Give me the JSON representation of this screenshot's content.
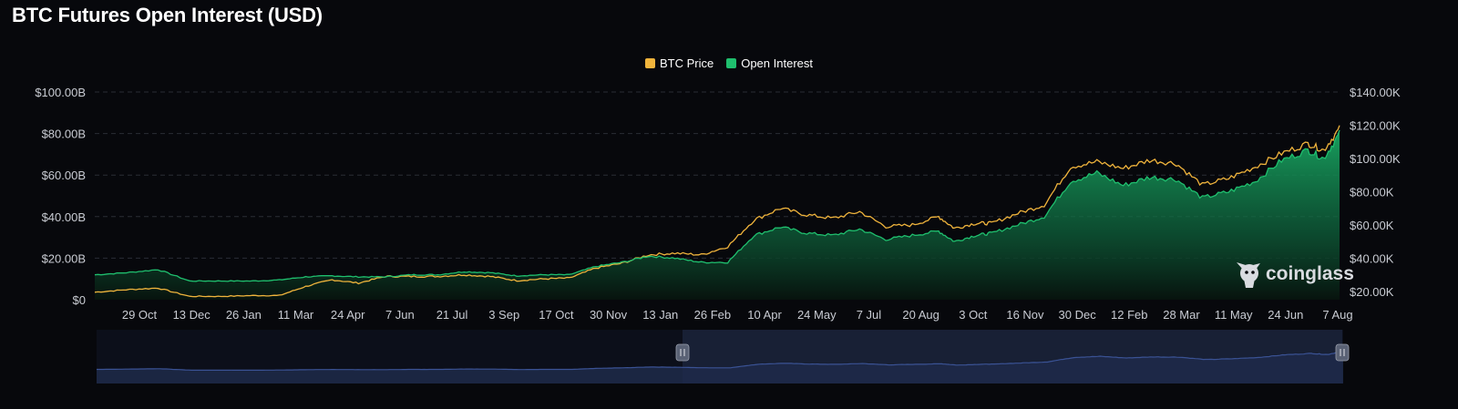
{
  "title": "BTC Futures Open Interest (USD)",
  "watermark": "coinglass",
  "colors": {
    "background": "#07080c",
    "btc_price": "#f0b43c",
    "open_interest": "#1fbf6e",
    "navigator_line": "#3a4e86",
    "navigator_fill": "#1b2440",
    "grid": "#2a2d35"
  },
  "icons": [
    "coinglass-logo-icon",
    "navigator-handle-icon"
  ],
  "chart_data": {
    "type": "area",
    "title": "BTC Futures Open Interest (USD)",
    "legend": {
      "position": "top-center",
      "entries": [
        "BTC Price",
        "Open Interest"
      ]
    },
    "grid": true,
    "x_ticks": [
      "29 Oct",
      "13 Dec",
      "26 Jan",
      "11 Mar",
      "24 Apr",
      "7 Jun",
      "21 Jul",
      "3 Sep",
      "17 Oct",
      "30 Nov",
      "13 Jan",
      "26 Feb",
      "10 Apr",
      "24 May",
      "7 Jul",
      "20 Aug",
      "3 Oct",
      "16 Nov",
      "30 Dec",
      "12 Feb",
      "28 Mar",
      "11 May",
      "24 Jun",
      "7 Aug"
    ],
    "y_left": {
      "ticks": [
        "$0",
        "$20.00B",
        "$40.00B",
        "$60.00B",
        "$80.00B",
        "$100.00B"
      ],
      "range": [
        0,
        100
      ]
    },
    "y_right": {
      "ticks": [
        "$20.00K",
        "$40.00K",
        "$60.00K",
        "$80.00K",
        "$100.00K",
        "$120.00K",
        "$140.00K"
      ],
      "range": [
        15,
        140
      ]
    },
    "x_positions": [
      0,
      0.6,
      1.2,
      1.8,
      2.4,
      3.0,
      3.5,
      4.0,
      4.5,
      5.0,
      5.5,
      6.0,
      6.5,
      7.0,
      7.5,
      8.0,
      8.5,
      9.0,
      9.5,
      10.0,
      10.5,
      11.0,
      11.5,
      12.0,
      12.5,
      13.0,
      13.5,
      14.0,
      14.5,
      15.0,
      15.5,
      16.0,
      16.3,
      16.7,
      17.0,
      17.5,
      18.0,
      18.5,
      19.0,
      19.5,
      20.0,
      20.5,
      21.0,
      21.5,
      22.0,
      22.5,
      23.0,
      23.3,
      23.6
    ],
    "series": [
      {
        "name": "Open Interest",
        "axis": "left",
        "unit": "B USD",
        "values": [
          12,
          13,
          14.5,
          9,
          9,
          9,
          9.5,
          11,
          11.5,
          11,
          11,
          12,
          12,
          13.5,
          13,
          11.5,
          12,
          12,
          16,
          18,
          21,
          20,
          18,
          18,
          31,
          35,
          32,
          31,
          34,
          29,
          31,
          33,
          28,
          31,
          32,
          36,
          40,
          57,
          61,
          55,
          59,
          58,
          49,
          52,
          57,
          67,
          72,
          68,
          80
        ]
      },
      {
        "name": "BTC Price",
        "axis": "right",
        "unit": "K USD",
        "values": [
          19.5,
          21,
          22,
          17,
          17,
          17.5,
          17.5,
          23,
          27,
          25,
          29,
          29,
          29,
          30,
          29,
          26.5,
          27.5,
          28,
          34,
          37,
          42,
          43,
          42,
          47,
          63,
          70,
          66,
          64,
          68,
          59,
          60,
          65,
          58,
          61,
          61,
          67,
          72,
          95,
          98,
          94,
          99,
          97,
          84,
          88,
          95,
          103,
          109,
          105,
          118
        ]
      }
    ],
    "navigator": {
      "selected_range": [
        "4.4",
        "23.8"
      ]
    }
  }
}
